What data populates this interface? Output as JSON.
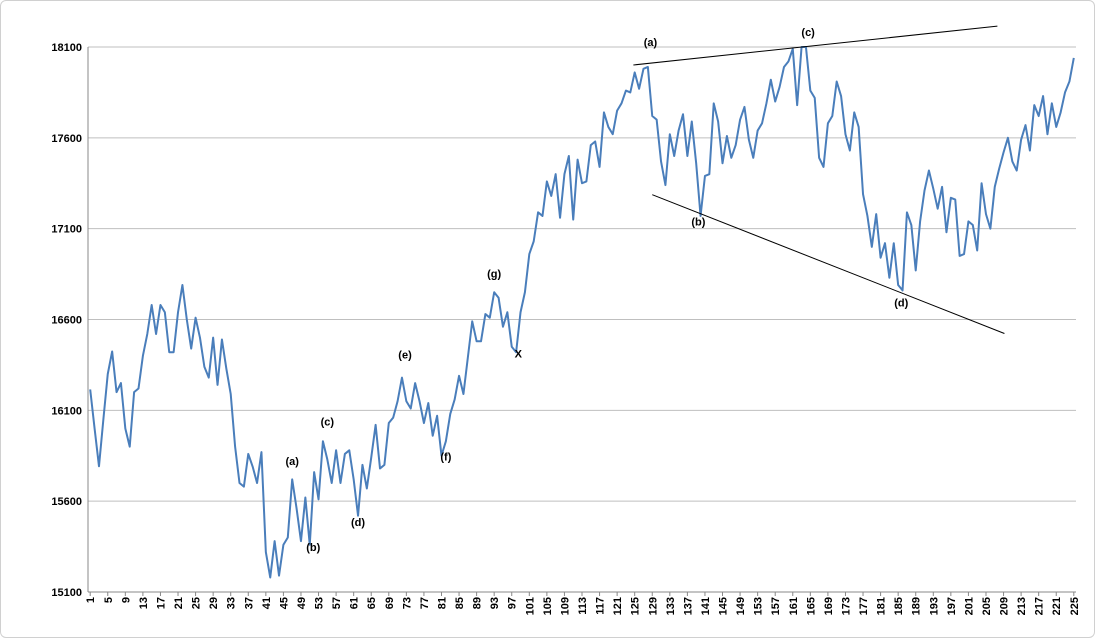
{
  "chart_data": {
    "type": "line",
    "x": [
      1,
      2,
      3,
      4,
      5,
      6,
      7,
      8,
      9,
      10,
      11,
      12,
      13,
      14,
      15,
      16,
      17,
      18,
      19,
      20,
      21,
      22,
      23,
      24,
      25,
      26,
      27,
      28,
      29,
      30,
      31,
      32,
      33,
      34,
      35,
      36,
      37,
      38,
      39,
      40,
      41,
      42,
      43,
      44,
      45,
      46,
      47,
      48,
      49,
      50,
      51,
      52,
      53,
      54,
      55,
      56,
      57,
      58,
      59,
      60,
      61,
      62,
      63,
      64,
      65,
      66,
      67,
      68,
      69,
      70,
      71,
      72,
      73,
      74,
      75,
      76,
      77,
      78,
      79,
      80,
      81,
      82,
      83,
      84,
      85,
      86,
      87,
      88,
      89,
      90,
      91,
      92,
      93,
      94,
      95,
      96,
      97,
      98,
      99,
      100,
      101,
      102,
      103,
      104,
      105,
      106,
      107,
      108,
      109,
      110,
      111,
      112,
      113,
      114,
      115,
      116,
      117,
      118,
      119,
      120,
      121,
      122,
      123,
      124,
      125,
      126,
      127,
      128,
      129,
      130,
      131,
      132,
      133,
      134,
      135,
      136,
      137,
      138,
      139,
      140,
      141,
      142,
      143,
      144,
      145,
      146,
      147,
      148,
      149,
      150,
      151,
      152,
      153,
      154,
      155,
      156,
      157,
      158,
      159,
      160,
      161,
      162,
      163,
      164,
      165,
      166,
      167,
      168,
      169,
      170,
      171,
      172,
      173,
      174,
      175,
      176,
      177,
      178,
      179,
      180,
      181,
      182,
      183,
      184,
      185,
      186,
      187,
      188,
      189,
      190,
      191,
      192,
      193,
      194,
      195,
      196,
      197,
      198,
      199,
      200,
      201,
      202,
      203,
      204,
      205,
      206,
      207,
      208,
      209,
      210,
      211,
      212,
      213,
      214,
      215,
      216,
      217,
      218,
      219,
      220,
      221,
      222,
      223,
      224,
      225
    ],
    "series": [
      {
        "color": "#4a7ebb",
        "values": [
          16215,
          16000,
          15792,
          16050,
          16300,
          16424,
          16200,
          16250,
          16000,
          15900,
          16200,
          16220,
          16400,
          16520,
          16680,
          16520,
          16680,
          16640,
          16420,
          16420,
          16640,
          16790,
          16600,
          16440,
          16610,
          16500,
          16340,
          16280,
          16500,
          16240,
          16490,
          16330,
          16190,
          15900,
          15700,
          15680,
          15860,
          15790,
          15700,
          15870,
          15320,
          15180,
          15380,
          15190,
          15360,
          15400,
          15720,
          15560,
          15380,
          15620,
          15360,
          15760,
          15610,
          15930,
          15830,
          15700,
          15880,
          15700,
          15860,
          15880,
          15720,
          15520,
          15800,
          15670,
          15840,
          16020,
          15780,
          15800,
          16030,
          16060,
          16150,
          16280,
          16150,
          16110,
          16250,
          16150,
          16030,
          16140,
          15960,
          16070,
          15850,
          15930,
          16080,
          16160,
          16290,
          16190,
          16390,
          16590,
          16480,
          16480,
          16630,
          16610,
          16750,
          16720,
          16560,
          16640,
          16450,
          16420,
          16640,
          16750,
          16960,
          17030,
          17190,
          17170,
          17360,
          17280,
          17400,
          17160,
          17400,
          17500,
          17150,
          17480,
          17350,
          17360,
          17560,
          17580,
          17440,
          17740,
          17660,
          17620,
          17750,
          17790,
          17860,
          17850,
          17960,
          17870,
          17980,
          17990,
          17720,
          17700,
          17470,
          17340,
          17620,
          17500,
          17640,
          17730,
          17500,
          17690,
          17460,
          17170,
          17390,
          17400,
          17790,
          17690,
          17460,
          17610,
          17490,
          17560,
          17700,
          17770,
          17590,
          17490,
          17640,
          17680,
          17790,
          17920,
          17800,
          17880,
          17990,
          18020,
          18090,
          17780,
          18100,
          18100,
          17860,
          17820,
          17490,
          17440,
          17680,
          17720,
          17910,
          17830,
          17620,
          17530,
          17740,
          17660,
          17290,
          17170,
          17000,
          17180,
          16940,
          17020,
          16830,
          17020,
          16790,
          16760,
          17190,
          17120,
          16870,
          17140,
          17310,
          17420,
          17320,
          17210,
          17330,
          17080,
          17270,
          17260,
          16950,
          16960,
          17140,
          17120,
          16980,
          17350,
          17180,
          17100,
          17330,
          17430,
          17520,
          17600,
          17470,
          17420,
          17590,
          17670,
          17530,
          17780,
          17720,
          17830,
          17620,
          17790,
          17660,
          17740,
          17850,
          17910,
          18040
        ]
      }
    ],
    "xlim": [
      0.5,
      225.5
    ],
    "xticks": [
      1,
      5,
      9,
      13,
      17,
      21,
      25,
      29,
      33,
      37,
      41,
      45,
      49,
      53,
      57,
      61,
      65,
      69,
      73,
      77,
      81,
      85,
      89,
      93,
      97,
      101,
      105,
      109,
      113,
      117,
      121,
      125,
      129,
      133,
      137,
      141,
      145,
      149,
      153,
      157,
      161,
      165,
      169,
      173,
      177,
      181,
      185,
      189,
      193,
      197,
      201,
      205,
      209,
      213,
      217,
      221,
      225
    ],
    "ylim": [
      15100,
      18100
    ],
    "yticks": [
      15100,
      15600,
      16100,
      16600,
      17100,
      17600,
      18100
    ],
    "grid": true,
    "annotations": [
      {
        "text": "(a)",
        "x": 47,
        "y": 15798
      },
      {
        "text": "(b)",
        "x": 51.8,
        "y": 15325
      },
      {
        "text": "(c)",
        "x": 55,
        "y": 16017
      },
      {
        "text": "(d)",
        "x": 62,
        "y": 15462
      },
      {
        "text": "(e)",
        "x": 72.7,
        "y": 16386
      },
      {
        "text": "(f)",
        "x": 82,
        "y": 15825
      },
      {
        "text": "(g)",
        "x": 93,
        "y": 16831
      },
      {
        "text": "X",
        "x": 98.5,
        "y": 16391
      },
      {
        "text": "(a)",
        "x": 128.6,
        "y": 18105
      },
      {
        "text": "(b)",
        "x": 139.5,
        "y": 17117
      },
      {
        "text": "(c)",
        "x": 164.5,
        "y": 18160
      },
      {
        "text": "(d)",
        "x": 185.7,
        "y": 16671
      }
    ],
    "trendlines": [
      {
        "x": [
          124.7,
          207.6
        ],
        "y": [
          18001,
          18215
        ]
      },
      {
        "x": [
          129,
          209.2
        ],
        "y": [
          17287,
          16523
        ]
      }
    ]
  }
}
